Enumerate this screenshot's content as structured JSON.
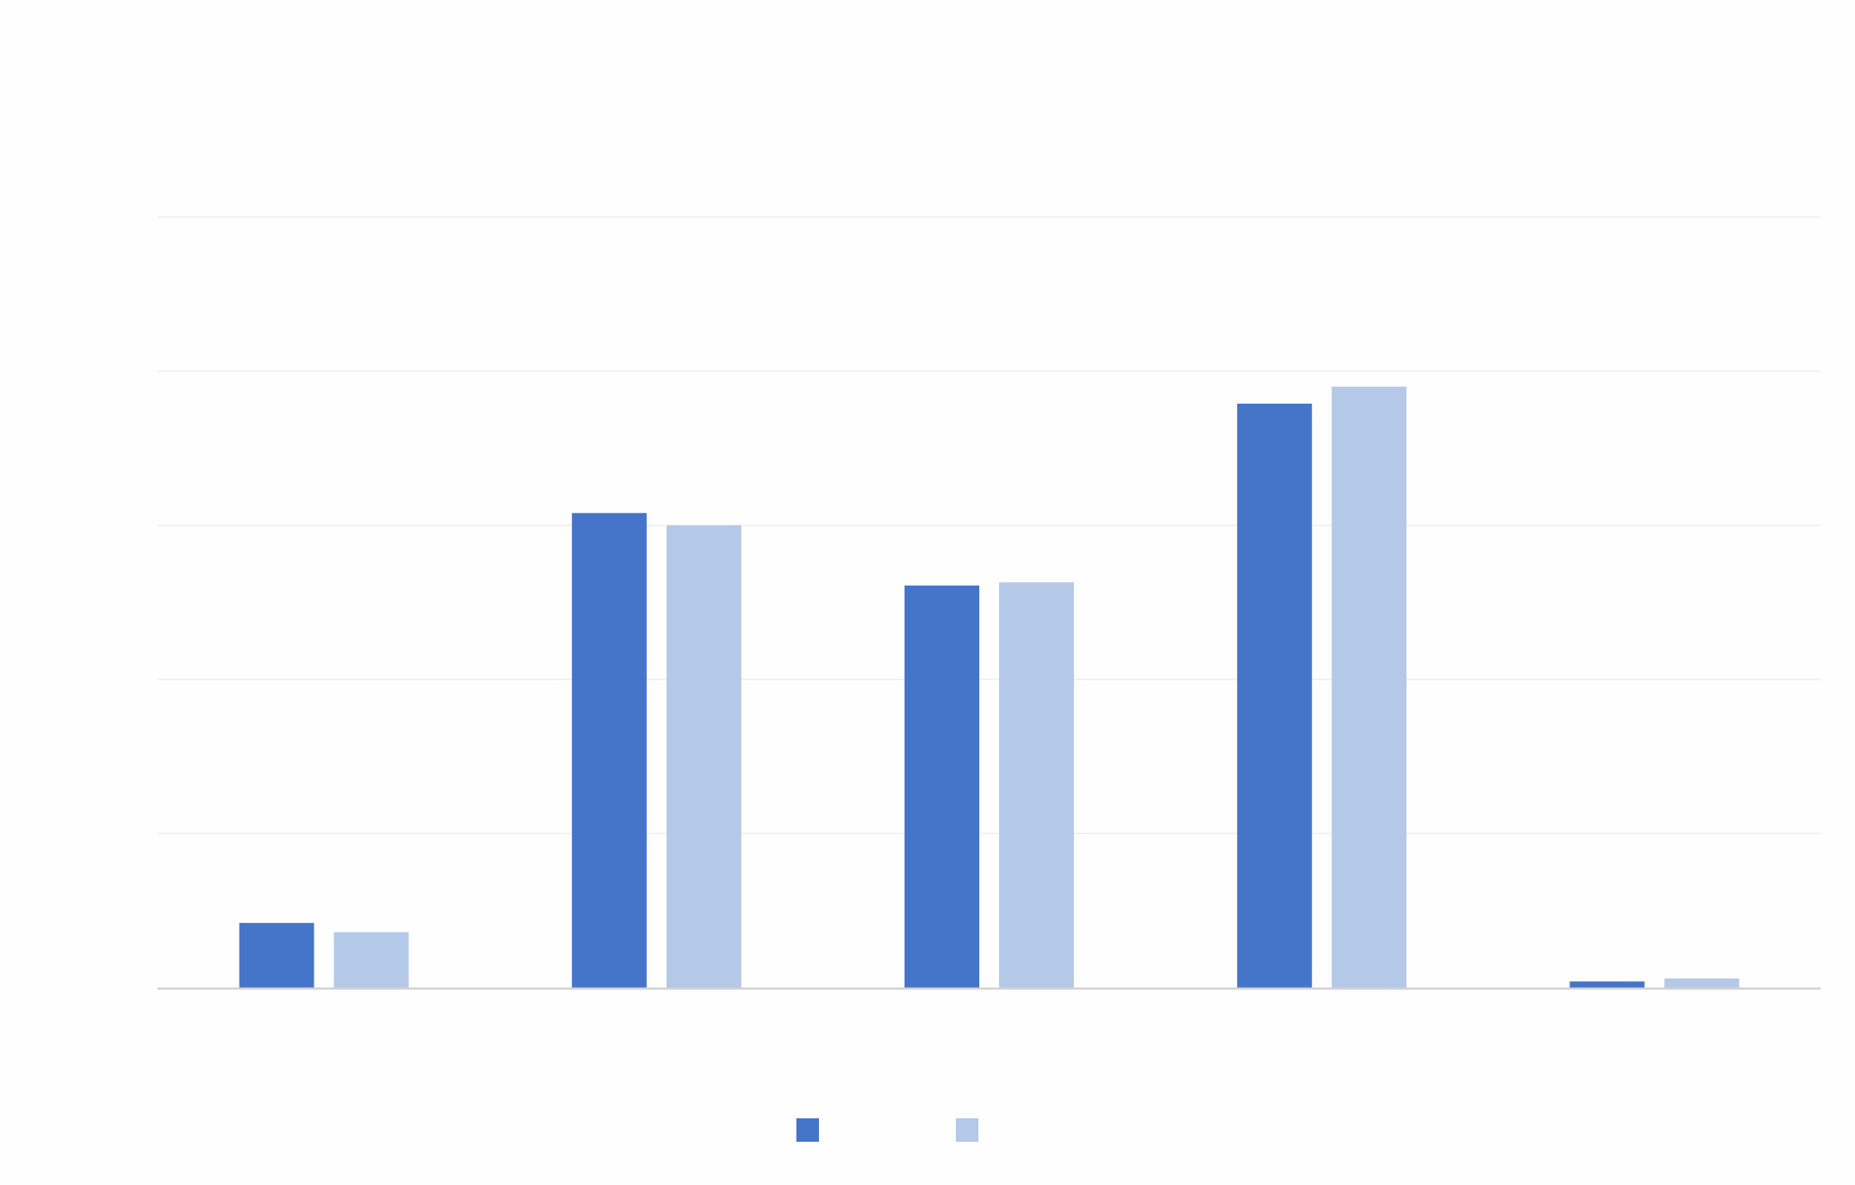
{
  "chart_data": {
    "type": "bar",
    "title": "",
    "xlabel": "",
    "ylabel": "",
    "categories": [
      "",
      "",
      "",
      "",
      ""
    ],
    "series": [
      {
        "color": "#4575c8",
        "values": [
          42,
          308,
          261,
          379,
          4
        ]
      },
      {
        "color": "#b4c8e8",
        "values": [
          36,
          300,
          263,
          390,
          6
        ]
      }
    ],
    "ylim": [
      0,
      500
    ],
    "yticks": [
      0,
      100,
      200,
      300,
      400,
      500
    ],
    "grid": true,
    "legend": {
      "position": "bottom"
    }
  }
}
